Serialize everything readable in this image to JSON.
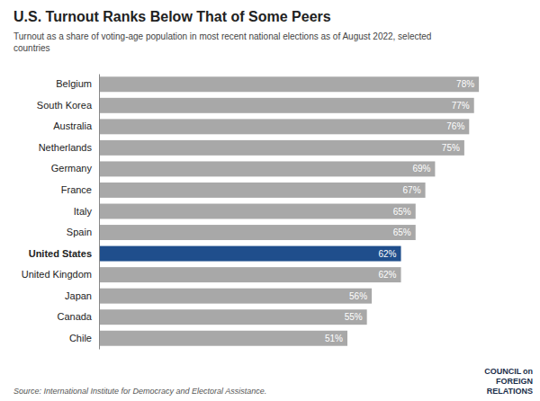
{
  "chart_data": {
    "type": "bar",
    "orientation": "horizontal",
    "title": "U.S. Turnout Ranks Below That of Some Peers",
    "subtitle": "Turnout as a share of voting-age population in most recent national elections as of August 2022, selected\ncountries",
    "source": "Source: International Institute for Democracy and Electoral Assistance.",
    "annotations": [
      "COUNCIL on\nFOREIGN\nRELATIONS"
    ],
    "categories": [
      "Belgium",
      "South Korea",
      "Australia",
      "Netherlands",
      "Germany",
      "France",
      "Italy",
      "Spain",
      "United States",
      "United Kingdom",
      "Japan",
      "Canada",
      "Chile"
    ],
    "values": [
      78,
      77,
      76,
      75,
      69,
      67,
      65,
      65,
      62,
      62,
      56,
      55,
      51
    ],
    "value_labels": [
      "78%",
      "77%",
      "76%",
      "75%",
      "69%",
      "67%",
      "65%",
      "65%",
      "62%",
      "62%",
      "56%",
      "55%",
      "51%"
    ],
    "colors": [
      "#a8a8a8",
      "#a8a8a8",
      "#a8a8a8",
      "#a8a8a8",
      "#a8a8a8",
      "#a8a8a8",
      "#a8a8a8",
      "#a8a8a8",
      "#1f4e8c",
      "#a8a8a8",
      "#a8a8a8",
      "#a8a8a8",
      "#a8a8a8"
    ],
    "xlim": [
      0,
      85
    ],
    "data_labels": true,
    "tick_labels": "y",
    "grid": false
  }
}
